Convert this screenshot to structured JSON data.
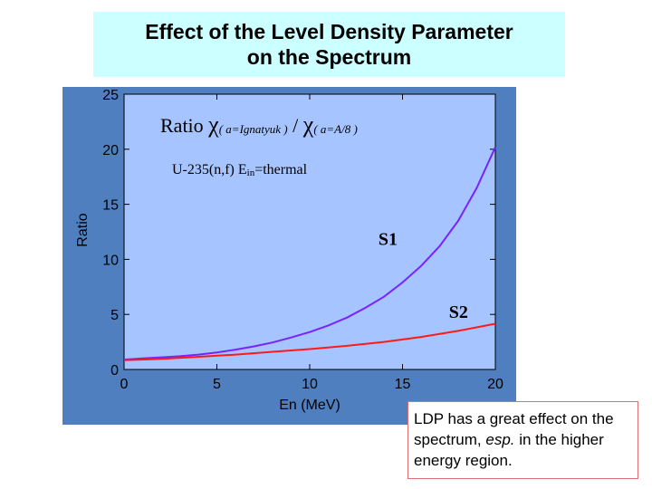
{
  "title": {
    "line1": "Effect of the Level Density Parameter",
    "line2": "on the Spectrum"
  },
  "note": {
    "part1": "LDP has a great effect on the spectrum, ",
    "emphasis": "esp.",
    "part2": " in the higher energy region."
  },
  "colors": {
    "panel_bg": "#4f7fbf",
    "plot_bg": "#a6c4ff",
    "title_bg": "#ccffff",
    "S1": "#7a22ff",
    "S2": "#ff1a1a",
    "note_border": "#e07070"
  },
  "chart_data": {
    "type": "line",
    "annotation_title": {
      "prefix": "Ratio ",
      "chi1": "χ",
      "arg1": "( a=Ignatyuk )",
      "slash": " / ",
      "chi2": "χ",
      "arg2": "( a=A/8 )"
    },
    "annotation_reaction": {
      "prefix": "U-235(n,f)  E",
      "sub": "in",
      "suffix": "=thermal"
    },
    "xlabel": "En (MeV)",
    "ylabel": "Ratio",
    "xlim": [
      0,
      20
    ],
    "ylim": [
      0,
      25
    ],
    "xticks": [
      0,
      5,
      10,
      15,
      20
    ],
    "yticks": [
      0,
      5,
      10,
      15,
      20,
      25
    ],
    "grid": false,
    "series": [
      {
        "name": "S1",
        "x": [
          0,
          1,
          2,
          3,
          4,
          5,
          6,
          7,
          8,
          9,
          10,
          11,
          12,
          13,
          14,
          15,
          16,
          17,
          18,
          19,
          20
        ],
        "values": [
          0.9,
          1.0,
          1.1,
          1.2,
          1.35,
          1.55,
          1.8,
          2.1,
          2.45,
          2.9,
          3.4,
          4.0,
          4.7,
          5.6,
          6.6,
          7.9,
          9.4,
          11.2,
          13.5,
          16.5,
          20.2
        ]
      },
      {
        "name": "S2",
        "x": [
          0,
          2,
          4,
          6,
          8,
          10,
          12,
          14,
          16,
          18,
          20
        ],
        "values": [
          0.85,
          0.95,
          1.15,
          1.35,
          1.6,
          1.85,
          2.15,
          2.5,
          2.95,
          3.5,
          4.15
        ]
      }
    ]
  }
}
